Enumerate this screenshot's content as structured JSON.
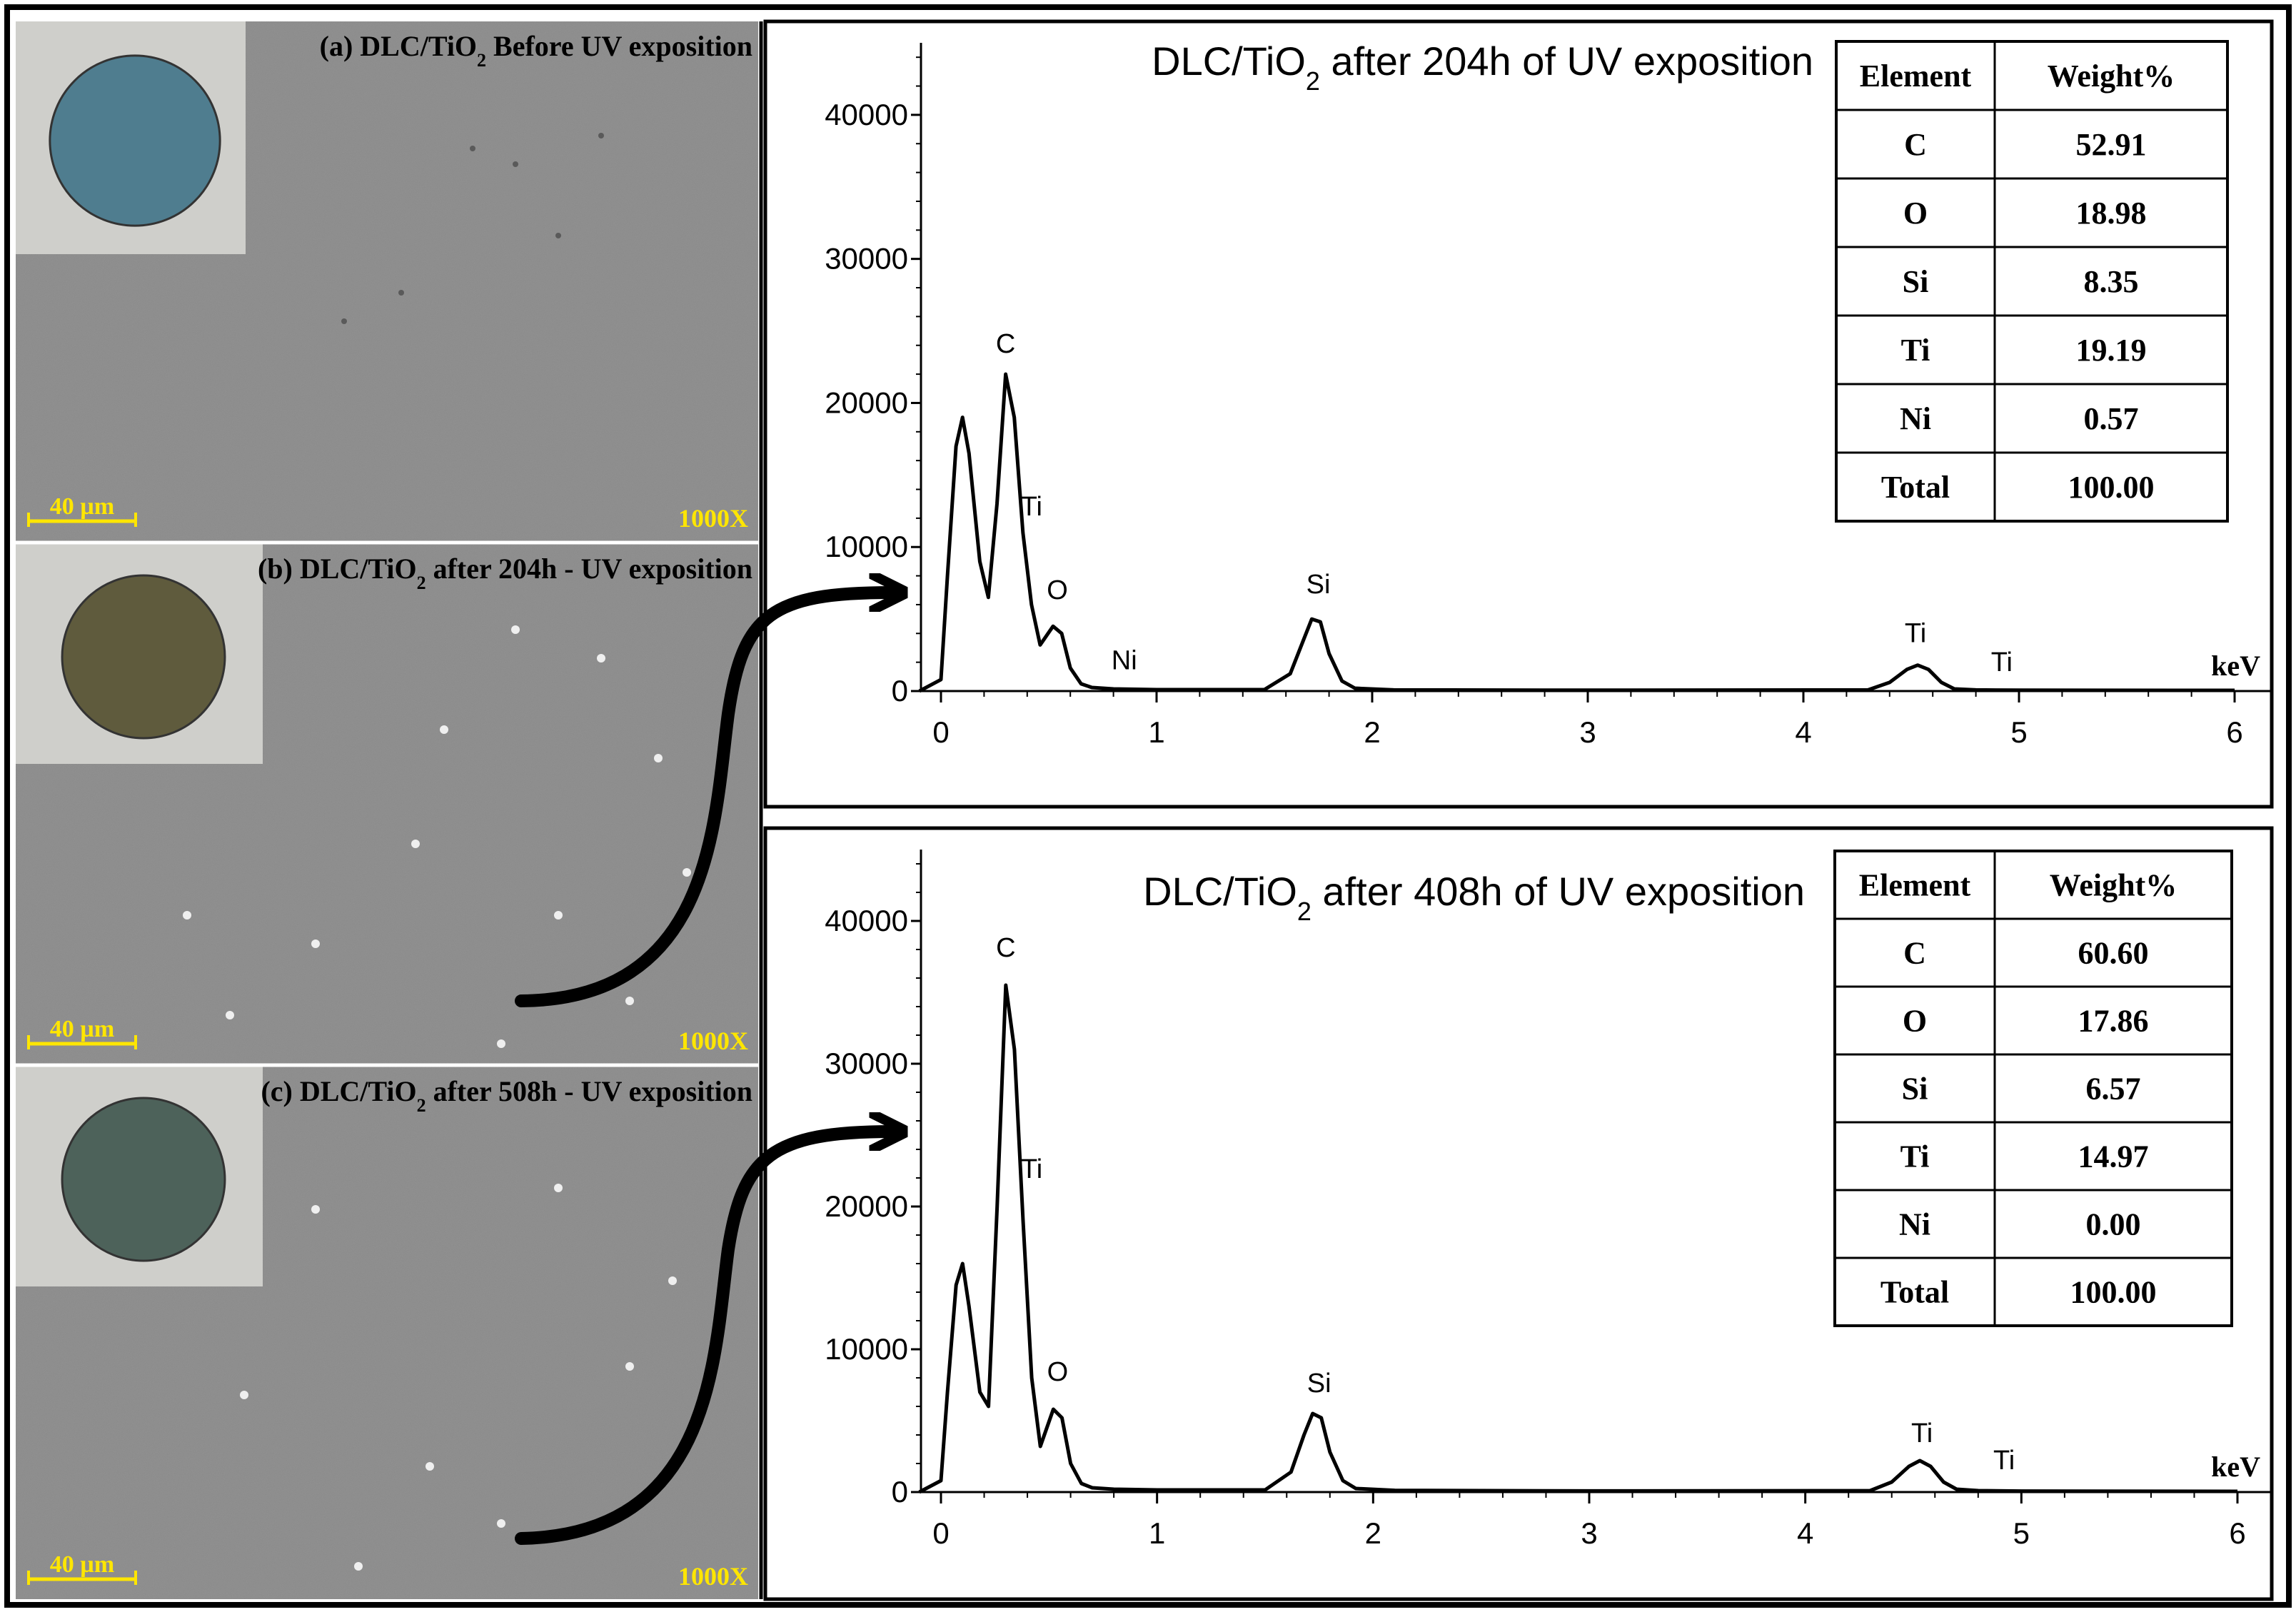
{
  "colors": {
    "sem_gray": "#8a8a8a",
    "scalebar": "#ffe600",
    "sample_a": "#4f7d8f",
    "sample_b": "#5f5b3d",
    "sample_c": "#4d625a",
    "inset_bg": "#cfcfcb",
    "line": "#000000"
  },
  "micrographs": [
    {
      "caption": "(a) DLC/TiO",
      "sub": "2",
      "caption_rest": " Before UV exposition",
      "scalebar": "40 µm",
      "mag": "1000X",
      "sample_color_key": "sample_a"
    },
    {
      "caption": "(b) DLC/TiO",
      "sub": "2",
      "caption_rest": " after 204h - UV exposition",
      "scalebar": "40 µm",
      "mag": "1000X",
      "sample_color_key": "sample_b"
    },
    {
      "caption": "(c) DLC/TiO",
      "sub": "2",
      "caption_rest": " after 508h - UV exposition",
      "scalebar": "40 µm",
      "mag": "1000X",
      "sample_color_key": "sample_c"
    }
  ],
  "chart_data": [
    {
      "type": "line",
      "title": "DLC/TiO",
      "title_sub": "2",
      "title_rest": " after 204h of UV exposition",
      "xlabel": "keV",
      "xlim": [
        0,
        6
      ],
      "ylim": [
        0,
        45000
      ],
      "xticks": [
        0,
        1,
        2,
        3,
        4,
        5,
        6
      ],
      "yticks": [
        0,
        10000,
        20000,
        30000,
        40000
      ],
      "series": [
        {
          "x": [
            -0.1,
            0.0,
            0.03,
            0.07,
            0.1,
            0.13,
            0.18,
            0.22,
            0.26,
            0.3,
            0.34,
            0.38,
            0.42,
            0.46,
            0.52,
            0.56,
            0.6,
            0.65,
            0.7,
            0.8,
            1.0,
            1.5,
            1.62,
            1.68,
            1.72,
            1.76,
            1.8,
            1.86,
            1.92,
            2.1,
            3.0,
            4.3,
            4.4,
            4.48,
            4.53,
            4.58,
            4.64,
            4.7,
            4.8,
            5.0,
            6.0
          ],
          "y": [
            0,
            800,
            8000,
            17000,
            19000,
            16500,
            9000,
            6500,
            13000,
            22000,
            19000,
            11000,
            6000,
            3200,
            4500,
            4000,
            1600,
            500,
            250,
            150,
            100,
            100,
            1200,
            3500,
            5000,
            4800,
            2600,
            700,
            200,
            80,
            60,
            80,
            600,
            1500,
            1800,
            1500,
            600,
            150,
            80,
            60,
            50
          ]
        }
      ],
      "annotations": [
        {
          "text": "C",
          "x": 0.3,
          "y": 23500
        },
        {
          "text": "Ti",
          "x": 0.42,
          "y": 12200
        },
        {
          "text": "O",
          "x": 0.54,
          "y": 6400
        },
        {
          "text": "Ni",
          "x": 0.85,
          "y": 1500
        },
        {
          "text": "Si",
          "x": 1.75,
          "y": 6800
        },
        {
          "text": "Ti",
          "x": 4.52,
          "y": 3400
        },
        {
          "text": "Ti",
          "x": 4.92,
          "y": 1400
        }
      ],
      "table": {
        "headers": [
          "Element",
          "Weight%"
        ],
        "rows": [
          [
            "C",
            "52.91"
          ],
          [
            "O",
            "18.98"
          ],
          [
            "Si",
            "8.35"
          ],
          [
            "Ti",
            "19.19"
          ],
          [
            "Ni",
            "0.57"
          ],
          [
            "Total",
            "100.00"
          ]
        ]
      }
    },
    {
      "type": "line",
      "title": "DLC/TiO",
      "title_sub": "2",
      "title_rest": " after 408h of UV exposition",
      "xlabel": "keV",
      "xlim": [
        0,
        6
      ],
      "ylim": [
        0,
        45000
      ],
      "xticks": [
        0,
        1,
        2,
        3,
        4,
        5,
        6
      ],
      "yticks": [
        0,
        10000,
        20000,
        30000,
        40000
      ],
      "series": [
        {
          "x": [
            -0.1,
            0.0,
            0.03,
            0.07,
            0.1,
            0.13,
            0.18,
            0.22,
            0.26,
            0.3,
            0.34,
            0.38,
            0.42,
            0.46,
            0.52,
            0.56,
            0.6,
            0.65,
            0.7,
            0.8,
            1.0,
            1.5,
            1.62,
            1.68,
            1.72,
            1.76,
            1.8,
            1.86,
            1.92,
            2.1,
            3.0,
            4.3,
            4.4,
            4.48,
            4.53,
            4.58,
            4.64,
            4.7,
            4.8,
            5.0,
            6.0
          ],
          "y": [
            0,
            800,
            7000,
            14500,
            16000,
            13000,
            7000,
            6000,
            20000,
            35500,
            31000,
            19000,
            8000,
            3200,
            5800,
            5200,
            2000,
            600,
            300,
            200,
            150,
            150,
            1400,
            4000,
            5500,
            5200,
            2800,
            800,
            250,
            120,
            80,
            100,
            700,
            1800,
            2200,
            1800,
            700,
            200,
            100,
            70,
            50
          ]
        }
      ],
      "annotations": [
        {
          "text": "C",
          "x": 0.3,
          "y": 37500
        },
        {
          "text": "Ti",
          "x": 0.42,
          "y": 22000
        },
        {
          "text": "O",
          "x": 0.54,
          "y": 7800
        },
        {
          "text": "Si",
          "x": 1.75,
          "y": 7000
        },
        {
          "text": "Ti",
          "x": 4.54,
          "y": 3500
        },
        {
          "text": "Ti",
          "x": 4.92,
          "y": 1600
        }
      ],
      "table": {
        "headers": [
          "Element",
          "Weight%"
        ],
        "rows": [
          [
            "C",
            "60.60"
          ],
          [
            "O",
            "17.86"
          ],
          [
            "Si",
            "6.57"
          ],
          [
            "Ti",
            "14.97"
          ],
          [
            "Ni",
            "0.00"
          ],
          [
            "Total",
            "100.00"
          ]
        ]
      }
    }
  ]
}
